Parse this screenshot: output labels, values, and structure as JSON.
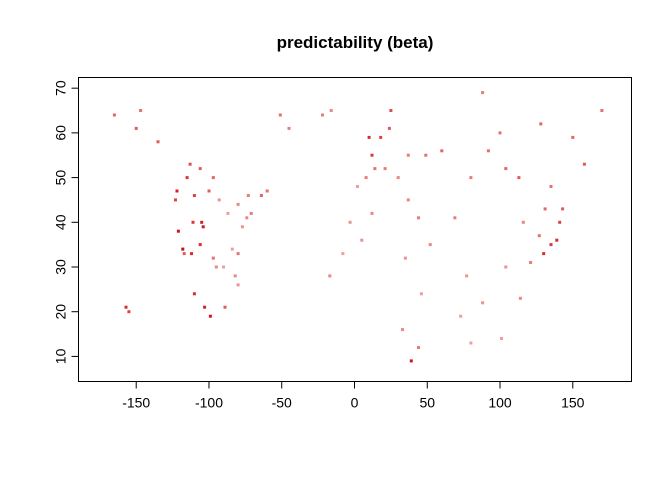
{
  "chart_data": {
    "type": "scatter",
    "title": "predictability (beta)",
    "xlabel": "",
    "ylabel": "",
    "xlim": [
      -190,
      190
    ],
    "ylim": [
      4.5,
      72.5
    ],
    "x_ticks": [
      -150,
      -100,
      -50,
      0,
      50,
      100,
      150
    ],
    "x_tick_labels": [
      "-150",
      "-100",
      "-50",
      "0",
      "50",
      "100",
      "150"
    ],
    "y_ticks": [
      10,
      20,
      30,
      40,
      50,
      60,
      70
    ],
    "y_tick_labels": [
      "10",
      "20",
      "30",
      "40",
      "50",
      "60",
      "70"
    ],
    "point_color_scale": {
      "low": "#ffe0e0",
      "high": "#cc0000"
    },
    "point_note": "Thousands of small square station markers; value (beta) encoded by red intensity. Representative points given as [longitude, latitude, beta 0..1].",
    "points": [
      [
        -122,
        47,
        0.85
      ],
      [
        -123,
        45,
        0.7
      ],
      [
        -121,
        38,
        0.9
      ],
      [
        -118,
        34,
        0.95
      ],
      [
        -117,
        33,
        0.6
      ],
      [
        -112,
        33,
        0.8
      ],
      [
        -111,
        40,
        0.75
      ],
      [
        -105,
        40,
        0.85
      ],
      [
        -104,
        39,
        0.9
      ],
      [
        -106,
        35,
        0.8
      ],
      [
        -97,
        32,
        0.5
      ],
      [
        -95,
        30,
        0.4
      ],
      [
        -90,
        30,
        0.3
      ],
      [
        -84,
        34,
        0.3
      ],
      [
        -80,
        26,
        0.35
      ],
      [
        -77,
        39,
        0.35
      ],
      [
        -74,
        41,
        0.4
      ],
      [
        -71,
        42,
        0.45
      ],
      [
        -87,
        42,
        0.3
      ],
      [
        -93,
        45,
        0.35
      ],
      [
        -100,
        47,
        0.6
      ],
      [
        -110,
        46,
        0.7
      ],
      [
        -115,
        50,
        0.75
      ],
      [
        -113,
        53,
        0.65
      ],
      [
        -106,
        52,
        0.6
      ],
      [
        -97,
        50,
        0.55
      ],
      [
        -80,
        44,
        0.4
      ],
      [
        -73,
        46,
        0.45
      ],
      [
        -64,
        46,
        0.55
      ],
      [
        -60,
        47,
        0.5
      ],
      [
        -150,
        61,
        0.6
      ],
      [
        -147,
        65,
        0.5
      ],
      [
        -165,
        64,
        0.55
      ],
      [
        -135,
        58,
        0.6
      ],
      [
        -157,
        21,
        0.8
      ],
      [
        -155,
        20,
        0.7
      ],
      [
        -99,
        19,
        0.9
      ],
      [
        -103,
        21,
        0.85
      ],
      [
        -89,
        21,
        0.6
      ],
      [
        -110,
        24,
        0.8
      ],
      [
        10,
        59,
        0.8
      ],
      [
        18,
        59,
        0.7
      ],
      [
        24,
        61,
        0.6
      ],
      [
        25,
        65,
        0.65
      ],
      [
        12,
        55,
        0.75
      ],
      [
        2,
        48,
        0.3
      ],
      [
        -3,
        40,
        0.35
      ],
      [
        12,
        42,
        0.4
      ],
      [
        8,
        50,
        0.45
      ],
      [
        14,
        52,
        0.5
      ],
      [
        21,
        52,
        0.45
      ],
      [
        30,
        50,
        0.4
      ],
      [
        37,
        55,
        0.45
      ],
      [
        49,
        55,
        0.5
      ],
      [
        60,
        56,
        0.55
      ],
      [
        37,
        45,
        0.4
      ],
      [
        44,
        41,
        0.45
      ],
      [
        35,
        32,
        0.35
      ],
      [
        46,
        24,
        0.3
      ],
      [
        52,
        35,
        0.4
      ],
      [
        69,
        41,
        0.45
      ],
      [
        77,
        28,
        0.35
      ],
      [
        73,
        19,
        0.3
      ],
      [
        80,
        13,
        0.3
      ],
      [
        88,
        22,
        0.35
      ],
      [
        92,
        56,
        0.5
      ],
      [
        104,
        52,
        0.55
      ],
      [
        113,
        50,
        0.6
      ],
      [
        116,
        40,
        0.4
      ],
      [
        121,
        31,
        0.45
      ],
      [
        114,
        23,
        0.4
      ],
      [
        104,
        30,
        0.35
      ],
      [
        101,
        14,
        0.3
      ],
      [
        127,
        37,
        0.5
      ],
      [
        135,
        35,
        0.75
      ],
      [
        139,
        36,
        0.8
      ],
      [
        141,
        40,
        0.7
      ],
      [
        143,
        43,
        0.6
      ],
      [
        131,
        43,
        0.55
      ],
      [
        135,
        48,
        0.5
      ],
      [
        150,
        59,
        0.55
      ],
      [
        158,
        53,
        0.6
      ],
      [
        170,
        65,
        0.5
      ],
      [
        128,
        62,
        0.55
      ],
      [
        88,
        69,
        0.45
      ],
      [
        39,
        9,
        0.9
      ],
      [
        44,
        12,
        0.45
      ],
      [
        33,
        16,
        0.4
      ],
      [
        5,
        36,
        0.35
      ],
      [
        -8,
        33,
        0.3
      ],
      [
        -17,
        28,
        0.4
      ],
      [
        -22,
        64,
        0.45
      ],
      [
        -16,
        65,
        0.4
      ],
      [
        -51,
        64,
        0.5
      ],
      [
        -45,
        61,
        0.45
      ],
      [
        100,
        60,
        0.5
      ],
      [
        80,
        50,
        0.45
      ],
      [
        130,
        33,
        0.8
      ],
      [
        -80,
        33,
        0.5
      ],
      [
        -82,
        28,
        0.4
      ]
    ]
  }
}
